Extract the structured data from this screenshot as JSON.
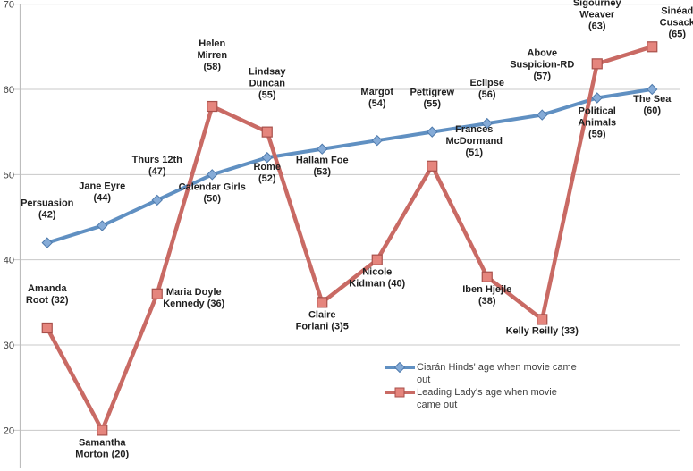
{
  "chart_data": {
    "type": "line",
    "title": "",
    "xlabel": "",
    "ylabel": "",
    "y_axis": {
      "min": 20,
      "max": 70,
      "step": 10,
      "tick_labels": [
        "20",
        "30",
        "40",
        "50",
        "60",
        "70"
      ]
    },
    "grid": "horizontal",
    "legend_position": "bottom-center-right",
    "categories": [
      "Persuasion",
      "Jane Eyre",
      "Thurs 12th",
      "Calendar Girls",
      "Rome",
      "Hallam Foe",
      "Margot",
      "Pettigrew",
      "Eclipse",
      "Above Suspicion-RD",
      "Political Animals",
      "The Sea"
    ],
    "series": [
      {
        "name": "Ciarán Hinds' age when movie came out",
        "color": "#6090C2",
        "marker": "diamond",
        "marker_fill": "#85ABD7",
        "marker_stroke": "#4E7AAC",
        "line_width": 4,
        "values": [
          42,
          44,
          47,
          50,
          52,
          53,
          54,
          55,
          56,
          57,
          59,
          60
        ],
        "point_labels": [
          {
            "lines": [
              "Persuasion",
              "(42)"
            ],
            "dy": -28
          },
          {
            "lines": [
              "Jane Eyre",
              "(44)"
            ],
            "dy": -28
          },
          {
            "lines": [
              "Thurs 12th",
              "(47)"
            ],
            "dy": -29
          },
          {
            "lines": [
              "Calendar Girls",
              "(50)"
            ],
            "dy": 17
          },
          {
            "lines": [
              "Rome",
              "(52)"
            ],
            "dy": 14
          },
          {
            "lines": [
              "Hallam Foe",
              "(53)"
            ],
            "dy": 16
          },
          {
            "lines": [
              "Margot",
              "(54)"
            ],
            "dy": -38
          },
          {
            "lines": [
              "Pettigrew",
              "(55)"
            ],
            "dy": -28
          },
          {
            "lines": [
              "Eclipse",
              "(56)"
            ],
            "dy": -29
          },
          {
            "lines": [
              "Above",
              "Suspicion-RD",
              "(57)"
            ],
            "dy": -40
          },
          {
            "lines": [
              "Political",
              "Animals",
              "(59)"
            ],
            "dy": 18
          },
          {
            "lines": [
              "The Sea",
              "(60)"
            ],
            "dy": 14
          }
        ]
      },
      {
        "name": "Leading Lady's age when movie came out",
        "color": "#C96A64",
        "marker": "square",
        "marker_fill": "#E5857D",
        "marker_stroke": "#A8504B",
        "line_width": 4.5,
        "values": [
          32,
          20,
          36,
          58,
          55,
          35,
          40,
          51,
          38,
          33,
          63,
          65
        ],
        "point_labels": [
          {
            "lines": [
              "Amanda",
              "Root (32)"
            ],
            "dy": -28
          },
          {
            "lines": [
              "Samantha",
              "Morton (20)"
            ],
            "dy": 17
          },
          {
            "lines": [
              "Maria Doyle",
              "Kennedy (36)"
            ],
            "dy": 1,
            "dx": 41
          },
          {
            "lines": [
              "Helen",
              "Mirren",
              "(58)"
            ],
            "dy": -41
          },
          {
            "lines": [
              "Lindsay",
              "Duncan",
              "(55)"
            ],
            "dy": -38
          },
          {
            "lines": [
              "Claire",
              "Forlani (3)5"
            ],
            "dy": 17
          },
          {
            "lines": [
              "Nicole",
              "Kidman (40)"
            ],
            "dy": 17
          },
          {
            "lines": [
              "Frances",
              "McDormand",
              "(51)"
            ],
            "dy": -12,
            "dx": 47
          },
          {
            "lines": [
              "Iben Hjejle",
              "(38)"
            ],
            "dy": 17
          },
          {
            "lines": [
              "Kelly Reilly (33)"
            ],
            "dy": 16
          },
          {
            "lines": [
              "Sigourney",
              "Weaver",
              "(63)"
            ],
            "dy": -39
          },
          {
            "lines": [
              "Sinéad",
              "Cusack",
              "(65)"
            ],
            "dy": -11,
            "dx": 28
          }
        ]
      }
    ],
    "colors": {
      "gridline": "#C8C8C8",
      "axis": "#BDBDBD",
      "label_text": "#1F1F1F",
      "tick_text": "#3F3F3F",
      "legend_text": "#3F3F3F",
      "background": "#FFFFFF"
    }
  }
}
